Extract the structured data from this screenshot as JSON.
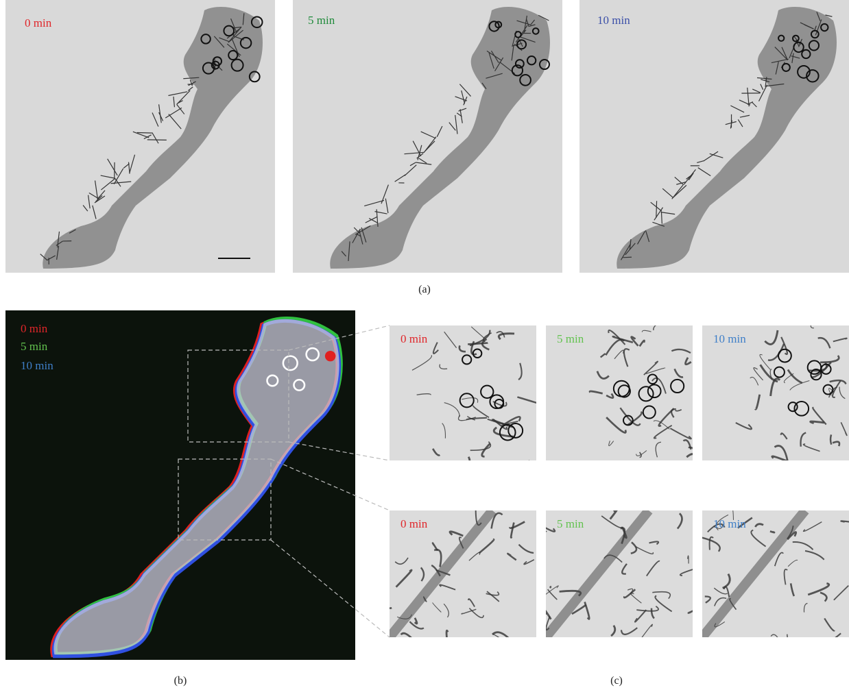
{
  "panel_a": {
    "frames": [
      "0 min",
      "5 min",
      "10 min"
    ],
    "caption": "(a)"
  },
  "panel_b": {
    "labels": [
      "0 min",
      "5 min",
      "10 min"
    ],
    "caption": "(b)"
  },
  "panel_c": {
    "rows": [
      [
        "0 min",
        "5 min",
        "10 min"
      ],
      [
        "0 min",
        "5 min",
        "10 min"
      ]
    ],
    "caption": "(c)"
  }
}
